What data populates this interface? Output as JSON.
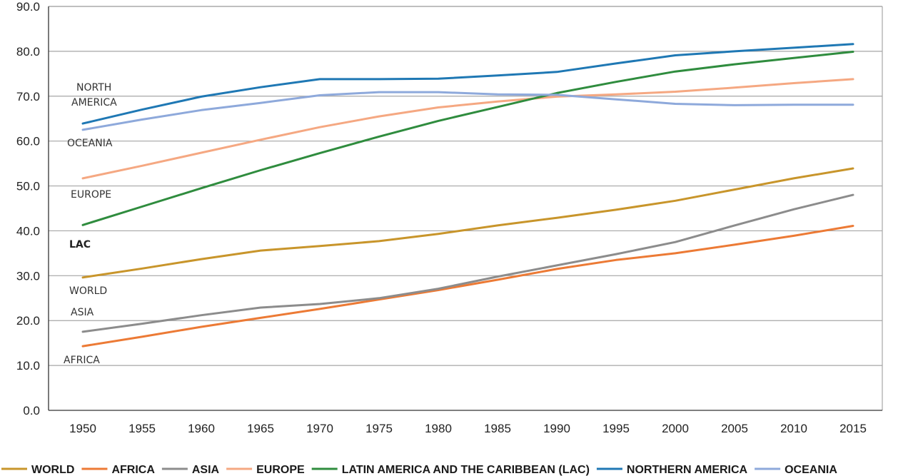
{
  "chart_data": {
    "type": "line",
    "title": "",
    "xlabel": "",
    "ylabel": "",
    "x": [
      1950,
      1955,
      1960,
      1965,
      1970,
      1975,
      1980,
      1985,
      1990,
      1995,
      2000,
      2005,
      2010,
      2015
    ],
    "ylim": [
      0,
      90
    ],
    "y_ticks": [
      "0.0",
      "10.0",
      "20.0",
      "30.0",
      "40.0",
      "50.0",
      "60.0",
      "70.0",
      "80.0",
      "90.0"
    ],
    "x_ticks": [
      "1950",
      "1955",
      "1960",
      "1965",
      "1970",
      "1975",
      "1980",
      "1985",
      "1990",
      "1995",
      "2000",
      "2005",
      "2010",
      "2015"
    ],
    "grid": true,
    "legend_position": "bottom",
    "series": [
      {
        "key": "world",
        "name": "WORLD",
        "color": "#C8952B",
        "values": [
          29.6,
          31.6,
          33.7,
          35.6,
          36.6,
          37.7,
          39.3,
          41.2,
          42.9,
          44.7,
          46.7,
          49.2,
          51.7,
          53.9
        ]
      },
      {
        "key": "africa",
        "name": "AFRICA",
        "color": "#EC7A35",
        "values": [
          14.3,
          16.4,
          18.6,
          20.6,
          22.6,
          24.7,
          26.8,
          29.1,
          31.5,
          33.5,
          35.0,
          36.9,
          38.9,
          41.1
        ]
      },
      {
        "key": "asia",
        "name": "ASIA",
        "color": "#8C8C8C",
        "values": [
          17.5,
          19.3,
          21.2,
          22.9,
          23.7,
          25.0,
          27.1,
          29.8,
          32.3,
          34.8,
          37.5,
          41.2,
          44.8,
          48.0
        ]
      },
      {
        "key": "europe",
        "name": "EUROPE",
        "color": "#F5A882",
        "values": [
          51.7,
          54.5,
          57.4,
          60.3,
          63.1,
          65.5,
          67.5,
          68.8,
          69.9,
          70.4,
          71.0,
          71.9,
          72.9,
          73.8
        ]
      },
      {
        "key": "lac",
        "name": "LATIN AMERICA AND THE CARIBBEAN (LAC)",
        "color": "#2F8C3E",
        "values": [
          41.3,
          45.4,
          49.5,
          53.5,
          57.3,
          61.0,
          64.5,
          67.6,
          70.7,
          73.2,
          75.5,
          77.1,
          78.5,
          79.9
        ]
      },
      {
        "key": "northern_america",
        "name": "NORTHERN AMERICA",
        "color": "#1F78B4",
        "values": [
          63.9,
          67.0,
          69.9,
          72.0,
          73.8,
          73.8,
          73.9,
          74.6,
          75.4,
          77.3,
          79.1,
          80.0,
          80.8,
          81.6
        ]
      },
      {
        "key": "oceania",
        "name": "OCEANIA",
        "color": "#8EA9DB",
        "values": [
          62.5,
          64.8,
          66.9,
          68.5,
          70.2,
          70.9,
          70.9,
          70.4,
          70.3,
          69.3,
          68.3,
          68.0,
          68.1,
          68.1
        ]
      }
    ],
    "annotations": [
      {
        "key": "north_america_1",
        "text": "NORTH",
        "bold": false
      },
      {
        "key": "north_america_2",
        "text": "AMERICA",
        "bold": false
      },
      {
        "key": "oceania",
        "text": "OCEANIA",
        "bold": false
      },
      {
        "key": "europe",
        "text": "EUROPE",
        "bold": false
      },
      {
        "key": "lac",
        "text": "LAC",
        "bold": true
      },
      {
        "key": "world",
        "text": "WORLD",
        "bold": false
      },
      {
        "key": "asia",
        "text": "ASIA",
        "bold": false
      },
      {
        "key": "africa",
        "text": "AFRICA",
        "bold": false
      }
    ]
  }
}
